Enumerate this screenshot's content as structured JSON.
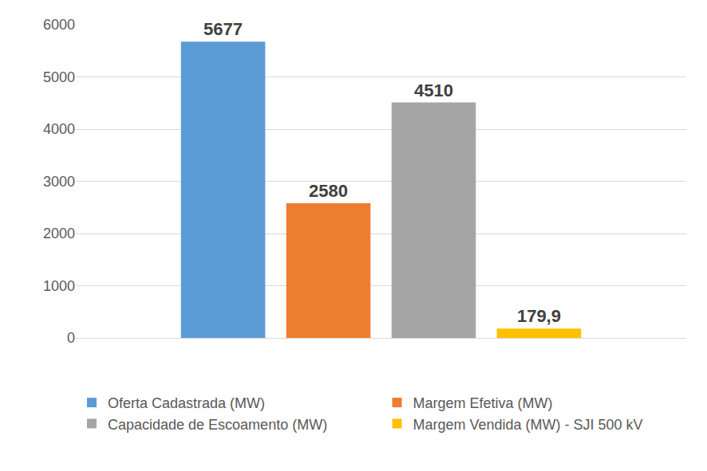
{
  "chart_data": {
    "type": "bar",
    "categories": [
      null
    ],
    "series": [
      {
        "name": "Oferta Cadastrada (MW)",
        "color": "#5b9bd5",
        "values": [
          5677
        ]
      },
      {
        "name": "Margem Efetiva (MW)",
        "color": "#ed7d31",
        "values": [
          2580
        ]
      },
      {
        "name": "Capacidade de Escoamento (MW)",
        "color": "#a5a5a5",
        "values": [
          4510
        ]
      },
      {
        "name": "Margem Vendida (MW) - SJI 500 kV",
        "color": "#ffc000",
        "values": [
          179.9
        ],
        "value_labels": [
          "179,9"
        ]
      }
    ],
    "ylim": [
      0,
      6000
    ],
    "yticks": [
      0,
      1000,
      2000,
      3000,
      4000,
      5000,
      6000
    ],
    "grid": true,
    "legend": "bottom",
    "data_labels": true,
    "tick_labels": "y"
  }
}
